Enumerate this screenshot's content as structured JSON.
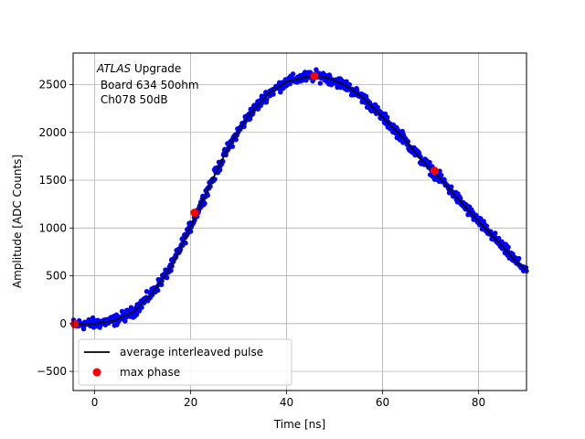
{
  "chart_data": {
    "type": "scatter",
    "xlabel": "Time [ns]",
    "ylabel": "Amplitude [ADC Counts]",
    "xlim": [
      -4.5,
      90
    ],
    "ylim": [
      -700,
      2830
    ],
    "xticks": [
      0,
      20,
      40,
      60,
      80
    ],
    "yticks": [
      -500,
      0,
      500,
      1000,
      1500,
      2000,
      2500
    ],
    "xtick_labels": [
      "0",
      "20",
      "40",
      "60",
      "80"
    ],
    "ytick_labels": [
      "−500",
      "0",
      "500",
      "1000",
      "1500",
      "2000",
      "2500"
    ],
    "grid": true,
    "annotation": {
      "line1_italic": "ATLAS",
      "line1_rest": " Upgrade",
      "line2": " Board 634 50ohm",
      "line3": " Ch078 50dB"
    },
    "legend": {
      "placement": "lower-left",
      "entries": [
        {
          "label": "average interleaved pulse",
          "marker": "line",
          "color": "#000000"
        },
        {
          "label": "max phase",
          "marker": "dot",
          "color": "#ff0000"
        }
      ]
    },
    "series": [
      {
        "kind": "samples",
        "color": "#0000ff",
        "pulse_shape": {
          "x": [
            -4.5,
            0,
            4,
            8,
            12,
            16,
            20,
            24,
            28,
            32,
            36,
            40,
            44,
            46,
            48,
            52,
            56,
            60,
            64,
            68,
            72,
            76,
            80,
            84,
            88,
            90
          ],
          "y": [
            -10,
            0,
            30,
            120,
            320,
            600,
            1020,
            1450,
            1860,
            2170,
            2400,
            2530,
            2580,
            2590,
            2580,
            2500,
            2360,
            2160,
            1960,
            1720,
            1520,
            1290,
            1070,
            860,
            640,
            560
          ]
        }
      },
      {
        "name": "average interleaved pulse",
        "kind": "line",
        "color": "#000000",
        "x": [
          -4.5,
          0,
          4,
          8,
          12,
          16,
          20,
          24,
          28,
          32,
          36,
          40,
          44,
          46,
          48,
          52,
          56,
          60,
          64,
          68,
          72,
          76,
          80,
          84,
          88,
          90
        ],
        "y": [
          -10,
          0,
          30,
          120,
          320,
          600,
          1020,
          1450,
          1860,
          2170,
          2400,
          2530,
          2580,
          2590,
          2580,
          2500,
          2360,
          2160,
          1960,
          1720,
          1520,
          1290,
          1070,
          860,
          640,
          560
        ]
      },
      {
        "name": "max phase",
        "kind": "points",
        "color": "#ff0000",
        "x": [
          -4.2,
          20.8,
          45.8,
          70.8
        ],
        "y": [
          -5,
          1160,
          2590,
          1600
        ]
      }
    ]
  }
}
